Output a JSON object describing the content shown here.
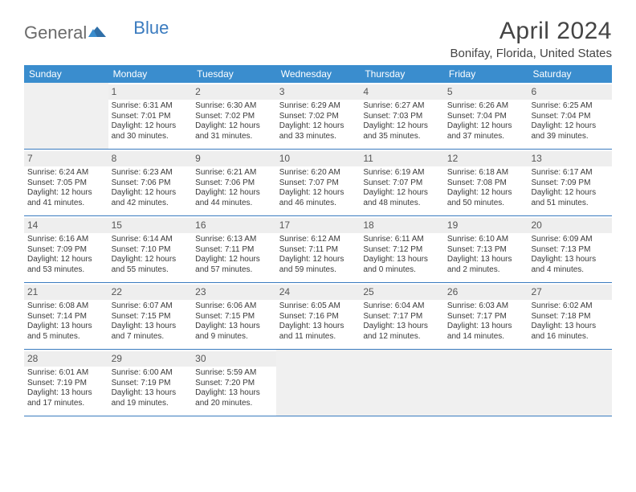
{
  "logo": {
    "part1": "General",
    "part2": "Blue"
  },
  "title": "April 2024",
  "location": "Bonifay, Florida, United States",
  "colors": {
    "header_bg": "#3a8dce",
    "header_text": "#ffffff",
    "border": "#3a7bbf",
    "daynum_bg": "#eeeeee",
    "out_bg": "#f0f0f0",
    "text": "#3a3a3a",
    "title_text": "#444444",
    "logo_gray": "#6b6b6b",
    "logo_blue": "#3a7bbf"
  },
  "dayNames": [
    "Sunday",
    "Monday",
    "Tuesday",
    "Wednesday",
    "Thursday",
    "Friday",
    "Saturday"
  ],
  "weeks": [
    [
      {
        "day": "",
        "out": true
      },
      {
        "day": "1",
        "sr": "6:31 AM",
        "ss": "7:01 PM",
        "dl": "12 hours and 30 minutes."
      },
      {
        "day": "2",
        "sr": "6:30 AM",
        "ss": "7:02 PM",
        "dl": "12 hours and 31 minutes."
      },
      {
        "day": "3",
        "sr": "6:29 AM",
        "ss": "7:02 PM",
        "dl": "12 hours and 33 minutes."
      },
      {
        "day": "4",
        "sr": "6:27 AM",
        "ss": "7:03 PM",
        "dl": "12 hours and 35 minutes."
      },
      {
        "day": "5",
        "sr": "6:26 AM",
        "ss": "7:04 PM",
        "dl": "12 hours and 37 minutes."
      },
      {
        "day": "6",
        "sr": "6:25 AM",
        "ss": "7:04 PM",
        "dl": "12 hours and 39 minutes."
      }
    ],
    [
      {
        "day": "7",
        "sr": "6:24 AM",
        "ss": "7:05 PM",
        "dl": "12 hours and 41 minutes."
      },
      {
        "day": "8",
        "sr": "6:23 AM",
        "ss": "7:06 PM",
        "dl": "12 hours and 42 minutes."
      },
      {
        "day": "9",
        "sr": "6:21 AM",
        "ss": "7:06 PM",
        "dl": "12 hours and 44 minutes."
      },
      {
        "day": "10",
        "sr": "6:20 AM",
        "ss": "7:07 PM",
        "dl": "12 hours and 46 minutes."
      },
      {
        "day": "11",
        "sr": "6:19 AM",
        "ss": "7:07 PM",
        "dl": "12 hours and 48 minutes."
      },
      {
        "day": "12",
        "sr": "6:18 AM",
        "ss": "7:08 PM",
        "dl": "12 hours and 50 minutes."
      },
      {
        "day": "13",
        "sr": "6:17 AM",
        "ss": "7:09 PM",
        "dl": "12 hours and 51 minutes."
      }
    ],
    [
      {
        "day": "14",
        "sr": "6:16 AM",
        "ss": "7:09 PM",
        "dl": "12 hours and 53 minutes."
      },
      {
        "day": "15",
        "sr": "6:14 AM",
        "ss": "7:10 PM",
        "dl": "12 hours and 55 minutes."
      },
      {
        "day": "16",
        "sr": "6:13 AM",
        "ss": "7:11 PM",
        "dl": "12 hours and 57 minutes."
      },
      {
        "day": "17",
        "sr": "6:12 AM",
        "ss": "7:11 PM",
        "dl": "12 hours and 59 minutes."
      },
      {
        "day": "18",
        "sr": "6:11 AM",
        "ss": "7:12 PM",
        "dl": "13 hours and 0 minutes."
      },
      {
        "day": "19",
        "sr": "6:10 AM",
        "ss": "7:13 PM",
        "dl": "13 hours and 2 minutes."
      },
      {
        "day": "20",
        "sr": "6:09 AM",
        "ss": "7:13 PM",
        "dl": "13 hours and 4 minutes."
      }
    ],
    [
      {
        "day": "21",
        "sr": "6:08 AM",
        "ss": "7:14 PM",
        "dl": "13 hours and 5 minutes."
      },
      {
        "day": "22",
        "sr": "6:07 AM",
        "ss": "7:15 PM",
        "dl": "13 hours and 7 minutes."
      },
      {
        "day": "23",
        "sr": "6:06 AM",
        "ss": "7:15 PM",
        "dl": "13 hours and 9 minutes."
      },
      {
        "day": "24",
        "sr": "6:05 AM",
        "ss": "7:16 PM",
        "dl": "13 hours and 11 minutes."
      },
      {
        "day": "25",
        "sr": "6:04 AM",
        "ss": "7:17 PM",
        "dl": "13 hours and 12 minutes."
      },
      {
        "day": "26",
        "sr": "6:03 AM",
        "ss": "7:17 PM",
        "dl": "13 hours and 14 minutes."
      },
      {
        "day": "27",
        "sr": "6:02 AM",
        "ss": "7:18 PM",
        "dl": "13 hours and 16 minutes."
      }
    ],
    [
      {
        "day": "28",
        "sr": "6:01 AM",
        "ss": "7:19 PM",
        "dl": "13 hours and 17 minutes."
      },
      {
        "day": "29",
        "sr": "6:00 AM",
        "ss": "7:19 PM",
        "dl": "13 hours and 19 minutes."
      },
      {
        "day": "30",
        "sr": "5:59 AM",
        "ss": "7:20 PM",
        "dl": "13 hours and 20 minutes."
      },
      {
        "day": "",
        "out": true
      },
      {
        "day": "",
        "out": true
      },
      {
        "day": "",
        "out": true
      },
      {
        "day": "",
        "out": true
      }
    ]
  ],
  "labels": {
    "sunrise": "Sunrise:",
    "sunset": "Sunset:",
    "daylight": "Daylight:"
  }
}
